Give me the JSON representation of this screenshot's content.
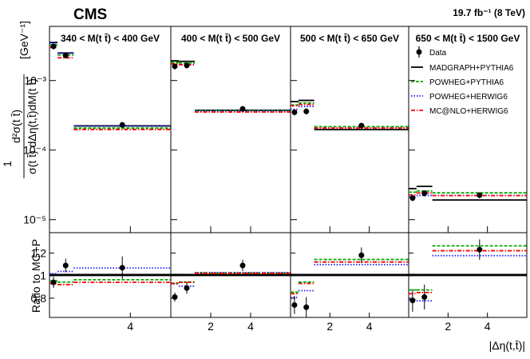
{
  "header": {
    "experiment": "CMS",
    "luminosity": "19.7 fb⁻¹ (8 TeV)"
  },
  "axes": {
    "ylabel_upper_top": "d²σ(t t̄)",
    "ylabel_upper_bottom": "σ(t t̄) dΔη(t,t̄)dM(t t̄)",
    "ylabel_upper_prefix": "1",
    "ylabel_upper_unit": "[GeV⁻¹]",
    "ylabel_lower": "Ratio to MG+P",
    "xlabel": "|Δη(t,t̄)|"
  },
  "chart_data": {
    "type": "line",
    "panels": [
      {
        "label": "340 < M(t t̄) < 400 GeV",
        "x_ticks": [
          4
        ],
        "x_tick_labels": [
          "4"
        ]
      },
      {
        "label": "400 < M(t t̄) < 500 GeV",
        "x_ticks": [
          2,
          4
        ],
        "x_tick_labels": [
          "2",
          "4"
        ]
      },
      {
        "label": "500 < M(t t̄) < 650 GeV",
        "x_ticks": [
          2,
          4
        ],
        "x_tick_labels": [
          "2",
          "4"
        ]
      },
      {
        "label": "650 < M(t t̄) < 1500 GeV",
        "x_ticks": [
          2,
          4
        ],
        "x_tick_labels": [
          "2",
          "4"
        ]
      }
    ],
    "x_bins": [
      [
        0,
        0.4
      ],
      [
        0.4,
        1.2
      ],
      [
        1.2,
        6
      ]
    ],
    "xlim": [
      0,
      6
    ],
    "upper": {
      "yscale": "log",
      "ylim": [
        6.5e-06,
        0.006
      ],
      "y_ticks": [
        1e-05,
        0.0001,
        0.001
      ],
      "y_tick_labels": [
        "10⁻⁵",
        "10⁻⁴",
        "10⁻³"
      ]
    },
    "lower": {
      "ylim": [
        0.63,
        1.38
      ],
      "y_ticks": [
        0.8,
        1.0,
        1.2
      ],
      "y_tick_labels": [
        "0.8",
        "1",
        "1.2"
      ]
    },
    "data": {
      "name": "Data",
      "x": [
        0.2,
        0.8,
        3.6
      ],
      "values": [
        [
          0.0031,
          0.0023,
          0.00023
        ],
        [
          0.0016,
          0.00165,
          0.00039
        ],
        [
          0.00035,
          0.00036,
          0.000225
        ],
        [
          2.05e-05,
          2.4e-05,
          2.25e-05
        ]
      ],
      "ratio": [
        [
          0.94,
          1.09,
          1.07
        ],
        [
          0.81,
          0.89,
          1.09
        ],
        [
          0.74,
          0.72,
          1.18
        ],
        [
          0.78,
          0.81,
          1.23
        ]
      ],
      "ratio_err": [
        [
          0.05,
          0.06,
          0.1
        ],
        [
          0.04,
          0.05,
          0.05
        ],
        [
          0.08,
          0.09,
          0.07
        ],
        [
          0.1,
          0.11,
          0.09
        ]
      ]
    },
    "series": [
      {
        "name": "MADGRAPH+PYTHIA6",
        "color": "#000000",
        "dash": "solid",
        "values": [
          [
            0.0034,
            0.0024,
            0.000215
          ],
          [
            0.00185,
            0.00182,
            0.00036
          ],
          [
            0.00048,
            0.0005,
            0.00019
          ],
          [
            2.7e-05,
            2.9e-05,
            1.85e-05
          ]
        ],
        "ratio": [
          [
            1,
            1,
            1
          ],
          [
            1,
            1,
            1
          ],
          [
            1,
            1,
            1
          ],
          [
            1,
            1,
            1
          ]
        ]
      },
      {
        "name": "POWHEG+PYTHIA6",
        "color": "#00aa00",
        "dash": "dashed",
        "values": [
          [
            0.0032,
            0.0023,
            0.000205
          ],
          [
            0.0018,
            0.00176,
            0.000365
          ],
          [
            0.00044,
            0.00047,
            0.000215
          ],
          [
            2.45e-05,
            2.55e-05,
            2.4e-05
          ]
        ],
        "ratio": [
          [
            0.95,
            0.94,
            0.96
          ],
          [
            0.93,
            0.94,
            1.02
          ],
          [
            0.85,
            0.94,
            1.14
          ],
          [
            0.87,
            0.87,
            1.26
          ]
        ]
      },
      {
        "name": "POWHEG+HERWIG6",
        "color": "#1a1aff",
        "dash": "dotted",
        "values": [
          [
            0.0035,
            0.0025,
            0.000225
          ],
          [
            0.00175,
            0.0017,
            0.00037
          ],
          [
            0.00039,
            0.00043,
            0.00021
          ],
          [
            2.15e-05,
            2.25e-05,
            2.25e-05
          ]
        ],
        "ratio": [
          [
            1.02,
            1.04,
            1.07
          ],
          [
            0.93,
            0.91,
            1.03
          ],
          [
            0.81,
            0.87,
            1.1
          ],
          [
            0.79,
            0.78,
            1.18
          ]
        ]
      },
      {
        "name": "MC@NLO+HERWIG6",
        "color": "#ff0000",
        "dash": "dashdot",
        "values": [
          [
            0.0031,
            0.0022,
            0.000205
          ],
          [
            0.0018,
            0.00175,
            0.000365
          ],
          [
            0.00045,
            0.00047,
            0.000215
          ],
          [
            2.35e-05,
            2.5e-05,
            2.3e-05
          ]
        ],
        "ratio": [
          [
            0.94,
            0.93,
            0.95
          ],
          [
            0.94,
            0.95,
            1.03
          ],
          [
            0.85,
            0.94,
            1.13
          ],
          [
            0.85,
            0.86,
            1.23
          ]
        ]
      }
    ]
  }
}
